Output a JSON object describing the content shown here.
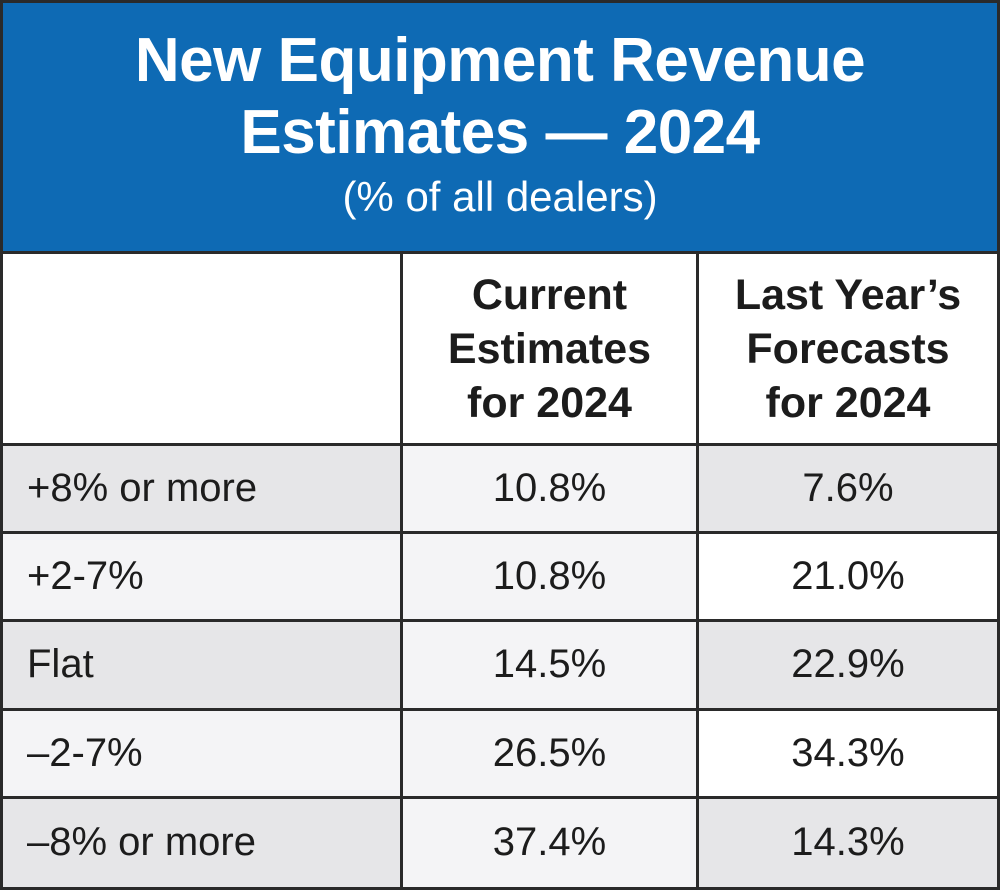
{
  "chart_data": {
    "type": "table",
    "title_line1": "New Equipment Revenue",
    "title_line2": "Estimates — 2024",
    "subtitle": "(% of all dealers)",
    "columns": [
      {
        "line1": "Current",
        "line2": "Estimates",
        "line3": "for 2024"
      },
      {
        "line1": "Last Year’s",
        "line2": "Forecasts",
        "line3": "for 2024"
      }
    ],
    "rows": [
      {
        "label": "+8% or more",
        "current": "10.8%",
        "last_year": "7.6%"
      },
      {
        "label": "+2-7%",
        "current": "10.8%",
        "last_year": "21.0%"
      },
      {
        "label": "Flat",
        "current": "14.5%",
        "last_year": "22.9%"
      },
      {
        "label": "–2-7%",
        "current": "26.5%",
        "last_year": "34.3%"
      },
      {
        "label": "–8% or more",
        "current": "37.4%",
        "last_year": "14.3%"
      }
    ]
  },
  "colors": {
    "header_blue": "#0e6ab4",
    "row_shade_dark": "#e6e6e8",
    "row_shade_light": "#f4f4f6",
    "border": "#2a2a2a"
  }
}
